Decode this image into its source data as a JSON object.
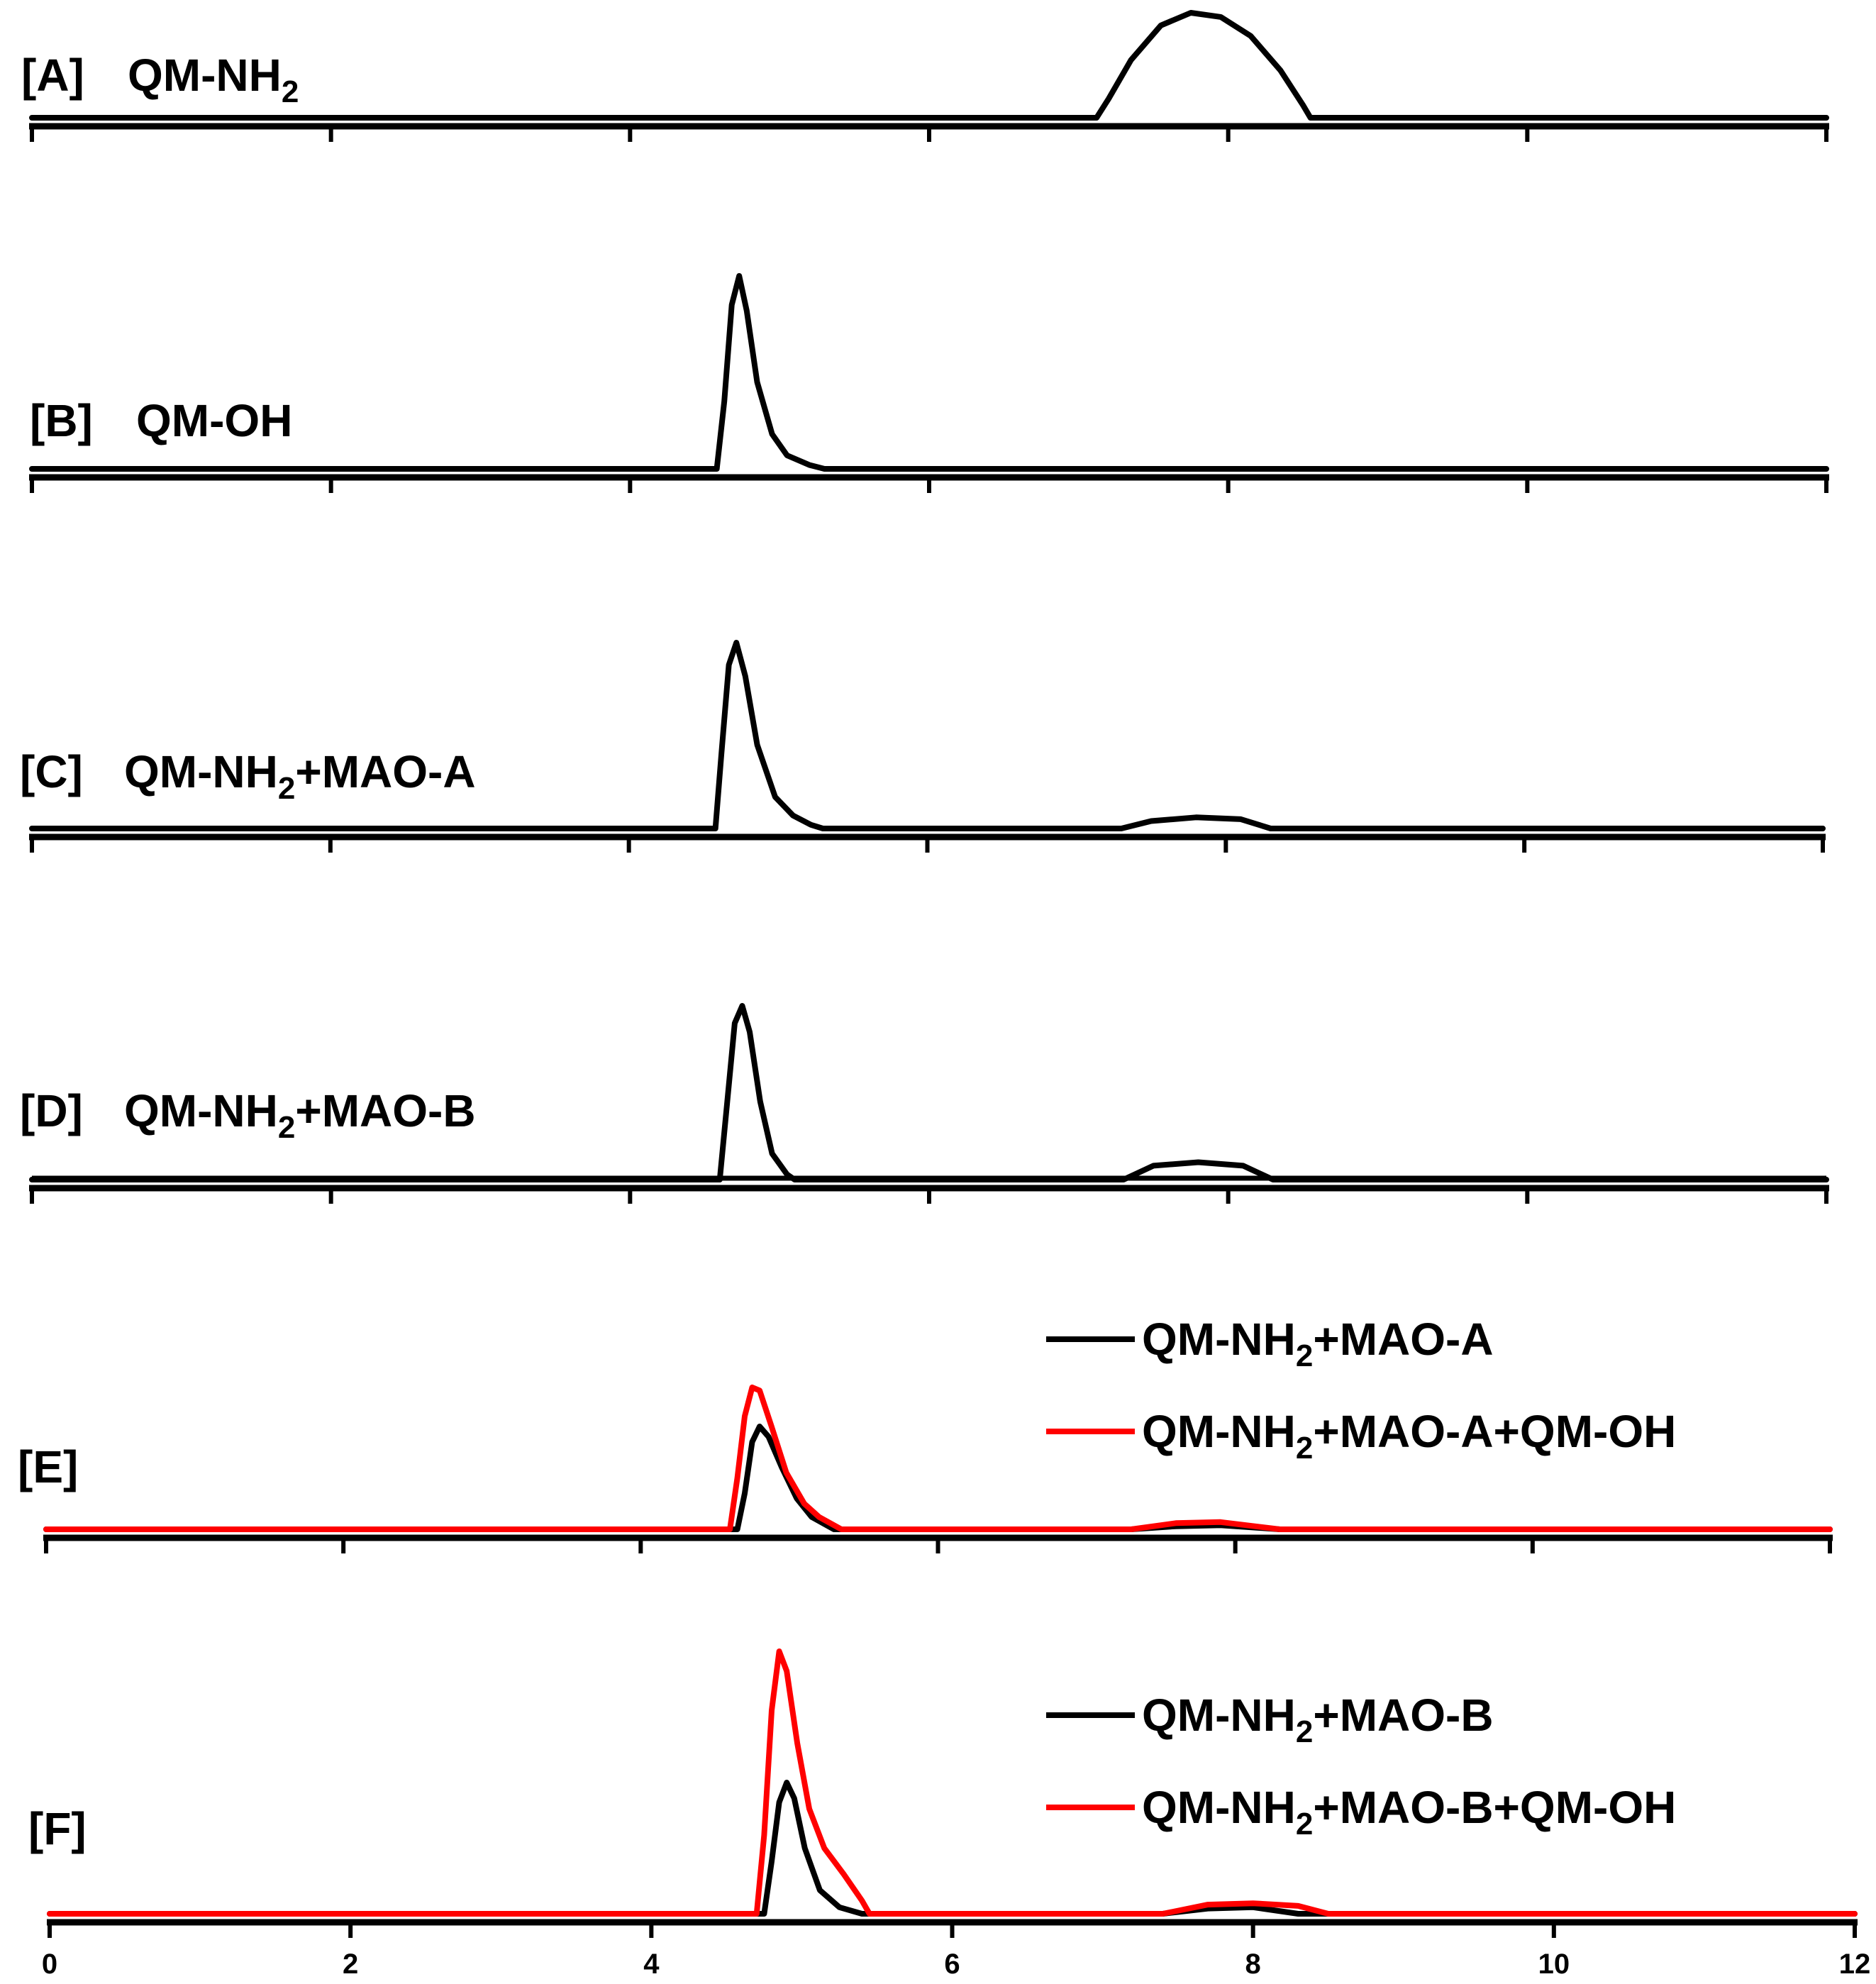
{
  "chart_data": {
    "type": "line",
    "xlim": [
      0,
      12
    ],
    "x_ticks": [
      0,
      2,
      4,
      6,
      8,
      10,
      12
    ],
    "grid": false,
    "panels": [
      {
        "id": "A",
        "tag": "[A]",
        "label": "QM-NH₂",
        "series": [
          {
            "name": "",
            "color": "#000000",
            "x": [
              0,
              7.12,
              7.2,
              7.35,
              7.55,
              7.75,
              7.95,
              8.15,
              8.35,
              8.5,
              8.55,
              12
            ],
            "y": [
              0,
              0,
              0.18,
              0.55,
              0.88,
              1.0,
              0.96,
              0.78,
              0.45,
              0.12,
              0,
              0
            ]
          }
        ],
        "legend": []
      },
      {
        "id": "B",
        "tag": "[B]",
        "label": "QM-OH",
        "series": [
          {
            "name": "",
            "color": "#000000",
            "x": [
              0,
              4.58,
              4.63,
              4.68,
              4.73,
              4.78,
              4.85,
              4.95,
              5.05,
              5.2,
              5.3,
              12
            ],
            "y": [
              0,
              0,
              0.35,
              0.85,
              1.0,
              0.82,
              0.45,
              0.18,
              0.07,
              0.02,
              0,
              0
            ]
          }
        ],
        "legend": []
      },
      {
        "id": "C",
        "tag": "[C]",
        "label": "QM-NH₂+MAO-A",
        "series": [
          {
            "name": "",
            "color": "#000000",
            "x": [
              0,
              4.58,
              4.62,
              4.67,
              4.72,
              4.78,
              4.86,
              4.98,
              5.1,
              5.22,
              5.3,
              7.3,
              7.5,
              7.8,
              8.1,
              8.3,
              12
            ],
            "y": [
              0,
              0,
              0.4,
              0.88,
              1.0,
              0.82,
              0.45,
              0.17,
              0.07,
              0.02,
              0,
              0,
              0.04,
              0.06,
              0.05,
              0,
              0
            ]
          }
        ],
        "legend": []
      },
      {
        "id": "D",
        "tag": "[D]",
        "label": "QM-NH₂+MAO-B",
        "series": [
          {
            "name": "",
            "color": "#000000",
            "x": [
              0,
              4.6,
              4.65,
              4.7,
              4.75,
              4.8,
              4.87,
              4.95,
              5.05,
              5.1,
              7.3,
              7.5,
              7.8,
              8.1,
              8.3,
              12
            ],
            "y": [
              0,
              0,
              0.45,
              0.9,
              1.0,
              0.85,
              0.45,
              0.15,
              0.03,
              0,
              0,
              0.08,
              0.1,
              0.08,
              0,
              0
            ]
          }
        ],
        "legend": []
      },
      {
        "id": "E",
        "tag": "[E]",
        "label": "",
        "series": [
          {
            "name": "QM-NH₂+MAO-A",
            "color": "#000000",
            "x": [
              0,
              4.65,
              4.7,
              4.75,
              4.8,
              4.86,
              4.95,
              5.05,
              5.15,
              5.3,
              7.3,
              7.6,
              7.9,
              8.3,
              12
            ],
            "y": [
              0,
              0,
              0.35,
              0.85,
              1.0,
              0.9,
              0.6,
              0.3,
              0.12,
              0,
              0,
              0.03,
              0.04,
              0,
              0
            ]
          },
          {
            "name": "QM-NH₂+MAO-A+QM-OH",
            "color": "#ff0000",
            "x": [
              0,
              4.6,
              4.65,
              4.7,
              4.75,
              4.8,
              4.88,
              4.98,
              5.1,
              5.2,
              5.35,
              7.3,
              7.6,
              7.9,
              8.3,
              12
            ],
            "y": [
              0,
              0,
              0.5,
              1.1,
              1.38,
              1.35,
              1.0,
              0.55,
              0.25,
              0.12,
              0,
              0,
              0.06,
              0.07,
              0,
              0
            ]
          }
        ],
        "legend": [
          {
            "label": "QM-NH₂+MAO-A",
            "color": "#000000"
          },
          {
            "label": "QM-NH₂+MAO-A+QM-OH",
            "color": "#ff0000"
          }
        ]
      },
      {
        "id": "F",
        "tag": "[F]",
        "label": "",
        "series": [
          {
            "name": "QM-NH₂+MAO-B",
            "color": "#000000",
            "x": [
              0,
              4.75,
              4.8,
              4.85,
              4.9,
              4.95,
              5.02,
              5.12,
              5.25,
              5.4,
              7.4,
              7.7,
              8.0,
              8.3,
              12
            ],
            "y": [
              0,
              0,
              0.4,
              0.85,
              1.0,
              0.88,
              0.5,
              0.18,
              0.05,
              0,
              0,
              0.04,
              0.05,
              0,
              0
            ]
          },
          {
            "name": "QM-NH₂+MAO-B+QM-OH",
            "color": "#ff0000",
            "x": [
              0,
              4.7,
              4.75,
              4.8,
              4.85,
              4.9,
              4.97,
              5.05,
              5.15,
              5.28,
              5.4,
              5.45,
              7.4,
              7.7,
              8.0,
              8.3,
              8.5,
              12
            ],
            "y": [
              0,
              0,
              0.6,
              1.55,
              2.0,
              1.85,
              1.3,
              0.8,
              0.5,
              0.3,
              0.1,
              0,
              0,
              0.07,
              0.08,
              0.06,
              0,
              0
            ]
          }
        ],
        "legend": [
          {
            "label": "QM-NH₂+MAO-B",
            "color": "#000000"
          },
          {
            "label": "QM-NH₂+MAO-B+QM-OH",
            "color": "#ff0000"
          }
        ]
      }
    ]
  }
}
